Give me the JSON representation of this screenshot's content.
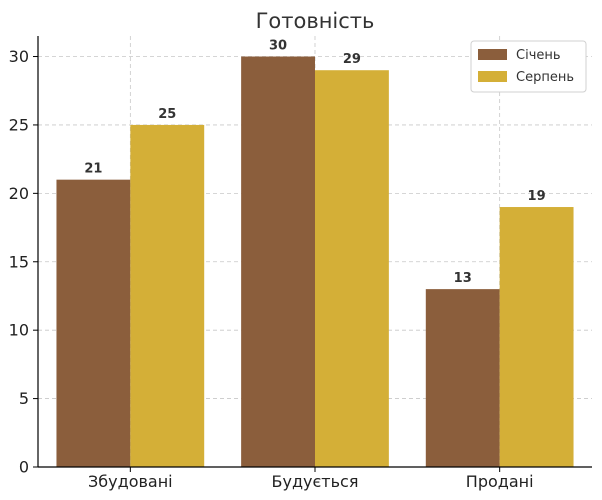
{
  "chart_data": {
    "type": "bar",
    "title": "Готовність",
    "categories": [
      "Збудовані",
      "Будується",
      "Продані"
    ],
    "series": [
      {
        "name": "Січень",
        "values": [
          21,
          30,
          13
        ],
        "color": "#8B5E3C"
      },
      {
        "name": "Серпень",
        "values": [
          25,
          29,
          19
        ],
        "color": "#D4AF37"
      }
    ],
    "ylim": [
      0,
      31.5
    ],
    "yticks": [
      0,
      5,
      10,
      15,
      20,
      25,
      30
    ],
    "xlabel": "",
    "ylabel": "",
    "grid": true,
    "legend_position": "top-right",
    "data_labels": true
  }
}
